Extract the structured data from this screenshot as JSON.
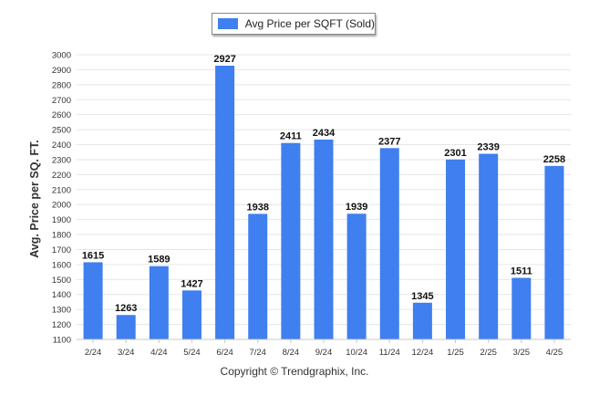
{
  "chart_data": {
    "type": "bar",
    "categories": [
      "2/24",
      "3/24",
      "4/24",
      "5/24",
      "6/24",
      "7/24",
      "8/24",
      "9/24",
      "10/24",
      "11/24",
      "12/24",
      "1/25",
      "2/25",
      "3/25",
      "4/25"
    ],
    "series": [
      {
        "name": "Avg Price per SQFT (Sold)",
        "values": [
          1615,
          1263,
          1589,
          1427,
          2927,
          1938,
          2411,
          2434,
          1939,
          2377,
          1345,
          2301,
          2339,
          1511,
          2258
        ]
      }
    ],
    "ylabel": "Avg. Price per SQ. FT.",
    "xlabel": "",
    "ylim": [
      1100,
      3000
    ],
    "ytick_step": 100,
    "grid": true,
    "legend": "top-center",
    "bar_color": "#3f7fef",
    "data_labels": true
  },
  "legend_label": "Avg Price per SQFT (Sold)",
  "footer_text": "Copyright © Trendgraphix, Inc."
}
